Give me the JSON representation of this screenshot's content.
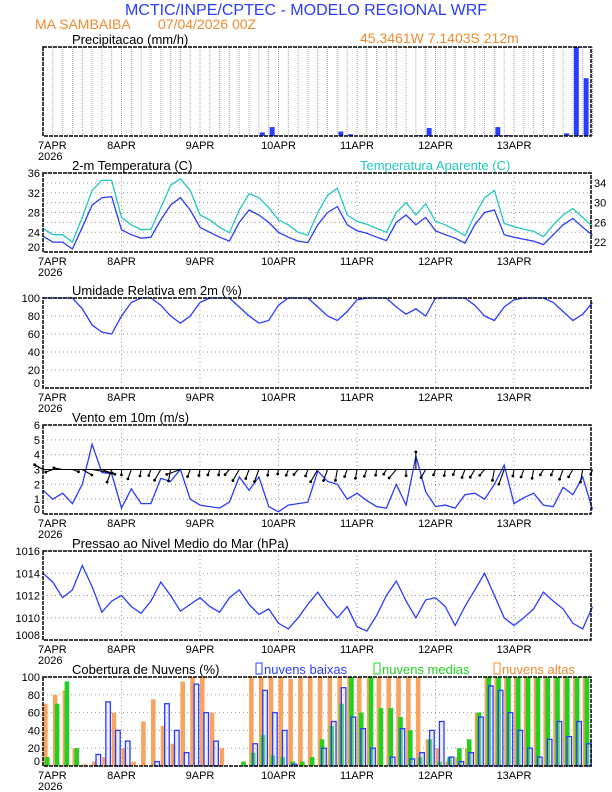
{
  "header": {
    "title": "MCTIC/INPE/CPTEC - MODELO REGIONAL WRF",
    "location": "MA SAMBAIBA",
    "run": "07/04/2026 00Z",
    "coords": "45.3461W 7.1403S 212m",
    "title_color": "#2a3cff",
    "accent_color": "#f08a30"
  },
  "x_axis": {
    "ticks": [
      "7APR",
      "8APR",
      "9APR",
      "10APR",
      "11APR",
      "12APR",
      "13APR"
    ],
    "year": "2026",
    "step_hours": 3
  },
  "chart_data": [
    {
      "id": "precip",
      "type": "bar",
      "title": "Precipitacao (mm/h)",
      "ylim": [
        0,
        10
      ],
      "color": "#2a3cff",
      "grid": true,
      "values": [
        0,
        0,
        0,
        0,
        0,
        0,
        0,
        0,
        0,
        0,
        0,
        0,
        0,
        0,
        0,
        0,
        0,
        0,
        0,
        0,
        0,
        0,
        0.4,
        1.0,
        0,
        0,
        0,
        0,
        0,
        0,
        0.5,
        0.2,
        0,
        0,
        0,
        0,
        0,
        0,
        0.1,
        0.9,
        0,
        0,
        0,
        0,
        0,
        0,
        1.0,
        0.1,
        0,
        0,
        0,
        0,
        0,
        0.3,
        10,
        6.5
      ]
    },
    {
      "id": "temp",
      "type": "line",
      "title": "2-m Temperatura (C)",
      "ylim": [
        20,
        36
      ],
      "yticks": [
        20,
        22,
        24,
        26,
        28,
        30,
        32,
        34,
        36
      ],
      "grid": true,
      "series": [
        {
          "name": "2-m Temperatura (C)",
          "color": "#2a3cff",
          "values": [
            23.2,
            22.0,
            22.0,
            20.6,
            25,
            29.5,
            31,
            31.2,
            24.5,
            23.5,
            22.8,
            23,
            26.5,
            29.5,
            31,
            28.5,
            25,
            24,
            23,
            22.2,
            26,
            28.5,
            27.5,
            26,
            24,
            23,
            22.2,
            21.9,
            25.5,
            28,
            29.2,
            25.5,
            24.3,
            23.8,
            23.0,
            22.3,
            26,
            27.5,
            25.5,
            27,
            24.3,
            23.5,
            22.8,
            21.8,
            25.5,
            28,
            28.5,
            23.5,
            23.0,
            22.6,
            22.2,
            21.5,
            23.5,
            25.5,
            26.8,
            25,
            23.4
          ]
        },
        {
          "name": "Temperatura Aparente (C)",
          "color": "#1fc8c0",
          "values": [
            24.8,
            23.5,
            23.5,
            22.0,
            27,
            32.5,
            34.5,
            34.5,
            27,
            25.5,
            24.5,
            24.6,
            29,
            33.5,
            34.8,
            32.5,
            27.5,
            26.5,
            25,
            23.9,
            28.5,
            31.8,
            31,
            29,
            26.5,
            25.5,
            24,
            23.4,
            28,
            31.5,
            32.9,
            27.5,
            26.2,
            25.6,
            24.8,
            24,
            28,
            30,
            27.5,
            29.8,
            26.2,
            25.5,
            24.5,
            23.3,
            27.5,
            31,
            32.5,
            25.8,
            25.1,
            24.6,
            24.2,
            23.1,
            25.5,
            27.5,
            28.8,
            27,
            25.2
          ]
        }
      ]
    },
    {
      "id": "rh",
      "type": "line",
      "title": "Umidade Relativa em 2m (%)",
      "ylim": [
        0,
        100
      ],
      "yticks": [
        0,
        20,
        40,
        60,
        80,
        100
      ],
      "grid": true,
      "series": [
        {
          "color": "#2a3cff",
          "values": [
            100,
            100,
            100,
            100,
            88,
            70,
            62,
            60,
            80,
            95,
            100,
            100,
            92,
            80,
            72,
            80,
            95,
            100,
            100,
            100,
            90,
            80,
            72,
            75,
            92,
            100,
            100,
            100,
            90,
            80,
            75,
            85,
            98,
            100,
            100,
            100,
            90,
            82,
            88,
            80,
            100,
            100,
            100,
            100,
            92,
            80,
            75,
            90,
            98,
            100,
            100,
            100,
            95,
            85,
            75,
            82,
            95
          ]
        }
      ]
    },
    {
      "id": "wind",
      "type": "line",
      "title": "Vento em 10m (m/s)",
      "ylim": [
        0,
        6
      ],
      "yticks": [
        0,
        1,
        2,
        3,
        4,
        5,
        6
      ],
      "grid": true,
      "series": [
        {
          "color": "#2a3cff",
          "values": [
            1.6,
            1.0,
            1.4,
            0.7,
            2.0,
            4.7,
            2.8,
            2.7,
            0.4,
            1.7,
            0.7,
            0.7,
            2.4,
            2.2,
            3.0,
            1.0,
            0.6,
            0.5,
            0.4,
            0.8,
            2.5,
            1.6,
            2.5,
            0.5,
            0.15,
            0.6,
            0.7,
            0.8,
            2.9,
            2.2,
            2.0,
            1.0,
            1.4,
            0.9,
            0.5,
            0.4,
            2.0,
            0.6,
            3.9,
            1.5,
            0.5,
            0.6,
            0.4,
            1.3,
            1.4,
            1.0,
            2.0,
            3.3,
            0.7,
            1.1,
            1.4,
            0.6,
            0.5,
            1.8,
            1.3,
            2.5,
            0.3
          ]
        }
      ],
      "wind_vectors_baseline": 3,
      "wind_dir_deg": [
        300,
        250,
        280,
        110,
        120,
        100,
        110,
        200,
        180,
        200,
        190,
        200,
        210,
        190,
        250,
        200,
        190,
        200,
        190,
        220,
        210,
        200,
        200,
        190,
        190,
        200,
        220,
        200,
        210,
        200,
        190,
        200,
        190,
        200,
        190,
        210,
        220,
        180,
        0,
        210,
        200,
        190,
        200,
        200,
        210,
        220,
        190,
        200,
        190,
        200,
        190,
        210,
        200,
        200,
        210,
        190,
        200
      ]
    },
    {
      "id": "pressure",
      "type": "line",
      "title": "Pressao ao Nivel Medio do Mar (hPa)",
      "ylim": [
        1008,
        1016
      ],
      "yticks": [
        1008,
        1010,
        1012,
        1014,
        1016
      ],
      "grid": true,
      "series": [
        {
          "color": "#2a3cff",
          "values": [
            1014.0,
            1013.2,
            1011.8,
            1012.5,
            1014.7,
            1012.8,
            1010.5,
            1011.5,
            1012.0,
            1011.0,
            1010.4,
            1011.5,
            1013.2,
            1012.0,
            1010.6,
            1011.2,
            1011.8,
            1011.0,
            1010.5,
            1011.8,
            1012.5,
            1011.2,
            1010.3,
            1010.8,
            1009.5,
            1009.0,
            1010.0,
            1011.2,
            1012.3,
            1011.0,
            1010.0,
            1011.0,
            1009.2,
            1008.8,
            1010.2,
            1012.0,
            1013.3,
            1011.5,
            1010.0,
            1011.6,
            1011.8,
            1011.0,
            1009.3,
            1011.0,
            1012.5,
            1014.0,
            1012.0,
            1010.0,
            1009.3,
            1010.0,
            1010.8,
            1012.3,
            1011.5,
            1010.8,
            1009.5,
            1009.0,
            1011.0
          ]
        }
      ]
    },
    {
      "id": "clouds",
      "type": "bar",
      "title": "Cobertura de Nuvens (%)",
      "ylim": [
        0,
        100
      ],
      "yticks": [
        0,
        20,
        40,
        60,
        80,
        100
      ],
      "grid": true,
      "series": [
        {
          "name": "nuvens altas",
          "color": "#f7a460",
          "values": [
            70,
            80,
            85,
            20,
            2,
            5,
            10,
            60,
            20,
            5,
            50,
            75,
            45,
            25,
            95,
            100,
            100,
            60,
            20,
            0,
            0,
            100,
            100,
            100,
            100,
            98,
            100,
            100,
            100,
            100,
            100,
            100,
            100,
            100,
            100,
            100,
            100,
            100,
            100,
            30,
            20,
            5,
            10,
            20,
            60,
            100,
            100,
            100,
            100,
            100,
            100,
            100,
            100,
            100,
            100,
            100
          ]
        },
        {
          "name": "nuvens medias",
          "color": "#22d020",
          "values": [
            10,
            70,
            95,
            20,
            0,
            0,
            0,
            0,
            0,
            0,
            0,
            0,
            0,
            0,
            0,
            0,
            0,
            0,
            0,
            0,
            5,
            15,
            35,
            12,
            10,
            5,
            5,
            10,
            30,
            45,
            70,
            100,
            60,
            100,
            65,
            65,
            55,
            40,
            10,
            30,
            5,
            10,
            20,
            30,
            60,
            100,
            100,
            100,
            100,
            100,
            100,
            100,
            100,
            100,
            100,
            100
          ]
        },
        {
          "name": "nuvens baixas",
          "color": "#2a3cff",
          "values": [
            0,
            0,
            0,
            0,
            0,
            13,
            72,
            40,
            28,
            0,
            0,
            5,
            70,
            40,
            15,
            92,
            60,
            28,
            0,
            0,
            0,
            25,
            85,
            60,
            40,
            2,
            0,
            0,
            20,
            50,
            88,
            55,
            42,
            20,
            0,
            10,
            42,
            8,
            15,
            40,
            50,
            10,
            5,
            15,
            55,
            90,
            85,
            60,
            40,
            20,
            10,
            30,
            50,
            33,
            50,
            25
          ]
        }
      ]
    }
  ]
}
